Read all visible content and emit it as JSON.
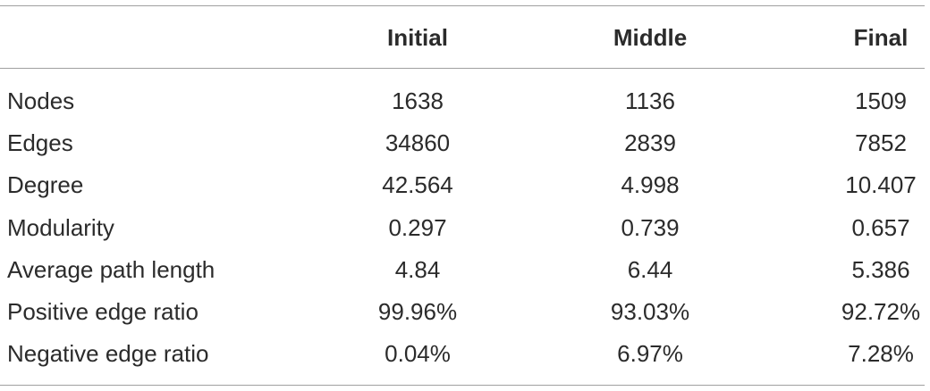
{
  "table": {
    "columns": [
      "Initial",
      "Middle",
      "Final"
    ],
    "rows": [
      {
        "label": "Nodes",
        "values": [
          "1638",
          "1136",
          "1509"
        ]
      },
      {
        "label": "Edges",
        "values": [
          "34860",
          "2839",
          "7852"
        ]
      },
      {
        "label": "Degree",
        "values": [
          "42.564",
          "4.998",
          "10.407"
        ]
      },
      {
        "label": "Modularity",
        "values": [
          "0.297",
          "0.739",
          "0.657"
        ]
      },
      {
        "label": "Average path length",
        "values": [
          "4.84",
          "6.44",
          "5.386"
        ]
      },
      {
        "label": "Positive edge ratio",
        "values": [
          "99.96%",
          "93.03%",
          "92.72%"
        ]
      },
      {
        "label": "Negative edge ratio",
        "values": [
          "0.04%",
          "6.97%",
          "7.28%"
        ]
      }
    ]
  }
}
